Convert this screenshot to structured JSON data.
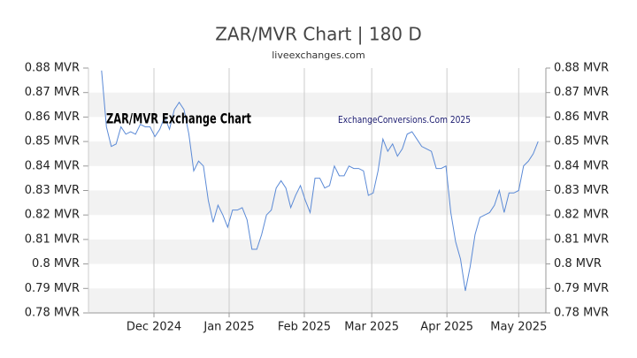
{
  "chart_data": {
    "type": "line",
    "title": "ZAR/MVR Chart | 180 D",
    "subtitle": "liveexchanges.com",
    "annotations": [
      "ZAR/MVR Exchange Chart",
      "ExchangeConversions.Com 2025"
    ],
    "series": [
      {
        "name": "ZAR/MVR",
        "color": "#5b8ad6",
        "values": [
          0.879,
          0.856,
          0.848,
          0.849,
          0.856,
          0.853,
          0.854,
          0.853,
          0.857,
          0.856,
          0.856,
          0.852,
          0.855,
          0.86,
          0.855,
          0.863,
          0.866,
          0.863,
          0.853,
          0.838,
          0.842,
          0.84,
          0.826,
          0.817,
          0.824,
          0.82,
          0.815,
          0.822,
          0.822,
          0.823,
          0.818,
          0.806,
          0.806,
          0.812,
          0.82,
          0.822,
          0.831,
          0.834,
          0.831,
          0.823,
          0.828,
          0.832,
          0.826,
          0.821,
          0.835,
          0.835,
          0.831,
          0.832,
          0.84,
          0.836,
          0.836,
          0.84,
          0.839,
          0.839,
          0.838,
          0.828,
          0.829,
          0.838,
          0.851,
          0.846,
          0.849,
          0.844,
          0.847,
          0.853,
          0.854,
          0.851,
          0.848,
          0.847,
          0.846,
          0.839,
          0.839,
          0.84,
          0.821,
          0.809,
          0.802,
          0.789,
          0.799,
          0.812,
          0.819,
          0.82,
          0.821,
          0.824,
          0.83,
          0.821,
          0.829,
          0.829,
          0.83,
          0.84,
          0.842,
          0.845,
          0.85
        ]
      }
    ],
    "xlim": [
      -2.7,
      91.6
    ],
    "xticks": [
      {
        "value": 10.8,
        "label": "Dec 2024"
      },
      {
        "value": 26.3,
        "label": "Jan 2025"
      },
      {
        "value": 41.8,
        "label": "Feb 2025"
      },
      {
        "value": 55.7,
        "label": "Mar 2025"
      },
      {
        "value": 71.2,
        "label": "Apr 2025"
      },
      {
        "value": 86.0,
        "label": "May 2025"
      }
    ],
    "ylim": [
      0.78,
      0.88
    ],
    "yticks": [
      {
        "value": 0.78,
        "label": "0.78 MVR"
      },
      {
        "value": 0.79,
        "label": "0.79 MVR"
      },
      {
        "value": 0.8,
        "label": "0.8 MVR"
      },
      {
        "value": 0.81,
        "label": "0.81 MVR"
      },
      {
        "value": 0.82,
        "label": "0.82 MVR"
      },
      {
        "value": 0.83,
        "label": "0.83 MVR"
      },
      {
        "value": 0.84,
        "label": "0.84 MVR"
      },
      {
        "value": 0.85,
        "label": "0.85 MVR"
      },
      {
        "value": 0.86,
        "label": "0.86 MVR"
      },
      {
        "value": 0.87,
        "label": "0.87 MVR"
      },
      {
        "value": 0.88,
        "label": "0.88 MVR"
      }
    ],
    "y2lim": [
      0.78,
      0.88
    ],
    "y2ticks": [
      {
        "value": 0.78,
        "label": "0.78 MVR"
      },
      {
        "value": 0.79,
        "label": "0.79 MVR"
      },
      {
        "value": 0.8,
        "label": "0.8 MVR"
      },
      {
        "value": 0.81,
        "label": "0.81 MVR"
      },
      {
        "value": 0.82,
        "label": "0.82 MVR"
      },
      {
        "value": 0.83,
        "label": "0.83 MVR"
      },
      {
        "value": 0.84,
        "label": "0.84 MVR"
      },
      {
        "value": 0.85,
        "label": "0.85 MVR"
      },
      {
        "value": 0.86,
        "label": "0.86 MVR"
      },
      {
        "value": 0.87,
        "label": "0.87 MVR"
      },
      {
        "value": 0.88,
        "label": "0.88 MVR"
      }
    ],
    "grid": true
  }
}
